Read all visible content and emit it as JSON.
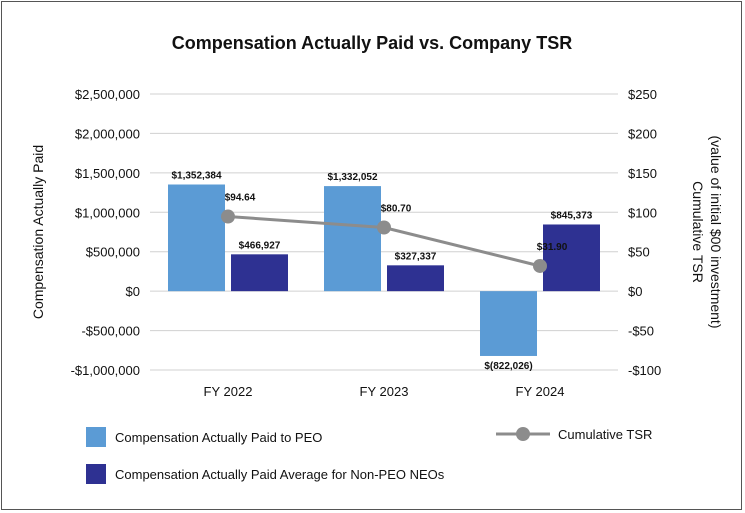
{
  "chart_data": {
    "type": "bar",
    "title": "Compensation Actually Paid vs. Company TSR",
    "categories": [
      "FY 2022",
      "FY 2023",
      "FY 2024"
    ],
    "ylabel": "Compensation Actually Paid",
    "y2label_line1": "Cumulative TSR",
    "y2label_line2": "(value of initial $00 investment)",
    "ylim": [
      -1000000,
      2500000
    ],
    "y2lim": [
      -100,
      250
    ],
    "y_ticks": [
      {
        "value": 2500000,
        "label": "$2,500,000"
      },
      {
        "value": 2000000,
        "label": "$2,000,000"
      },
      {
        "value": 1500000,
        "label": "$1,500,000"
      },
      {
        "value": 1000000,
        "label": "$1,000,000"
      },
      {
        "value": 500000,
        "label": "$500,000"
      },
      {
        "value": 0,
        "label": "$0"
      },
      {
        "value": -500000,
        "label": "-$500,000"
      },
      {
        "value": -1000000,
        "label": "-$1,000,000"
      }
    ],
    "y2_ticks": [
      {
        "value": 250,
        "label": "$250"
      },
      {
        "value": 200,
        "label": "$200"
      },
      {
        "value": 150,
        "label": "$150"
      },
      {
        "value": 100,
        "label": "$100"
      },
      {
        "value": 50,
        "label": "$50"
      },
      {
        "value": 0,
        "label": "$0"
      },
      {
        "value": -50,
        "label": "-$50"
      },
      {
        "value": -100,
        "label": "-$100"
      }
    ],
    "series": [
      {
        "name": "Compensation Actually Paid to PEO",
        "kind": "bar",
        "color": "#5b9bd5",
        "values": [
          1352384,
          1332052,
          -822026
        ],
        "labels": [
          "$1,352,384",
          "$1,332,052",
          "$(822,026)"
        ]
      },
      {
        "name": "Compensation Actually Paid Average for Non-PEO NEOs",
        "kind": "bar",
        "color": "#2e3192",
        "values": [
          466927,
          327337,
          845373
        ],
        "labels": [
          "$466,927",
          "$327,337",
          "$845,373"
        ]
      },
      {
        "name": "Cumulative TSR",
        "kind": "line",
        "axis": "right",
        "color": "#8c8c8c",
        "values": [
          94.64,
          80.7,
          31.9
        ],
        "labels": [
          "$94.64",
          "$80.70",
          "$31.90"
        ]
      }
    ],
    "grid": true,
    "legend_position": "bottom"
  }
}
